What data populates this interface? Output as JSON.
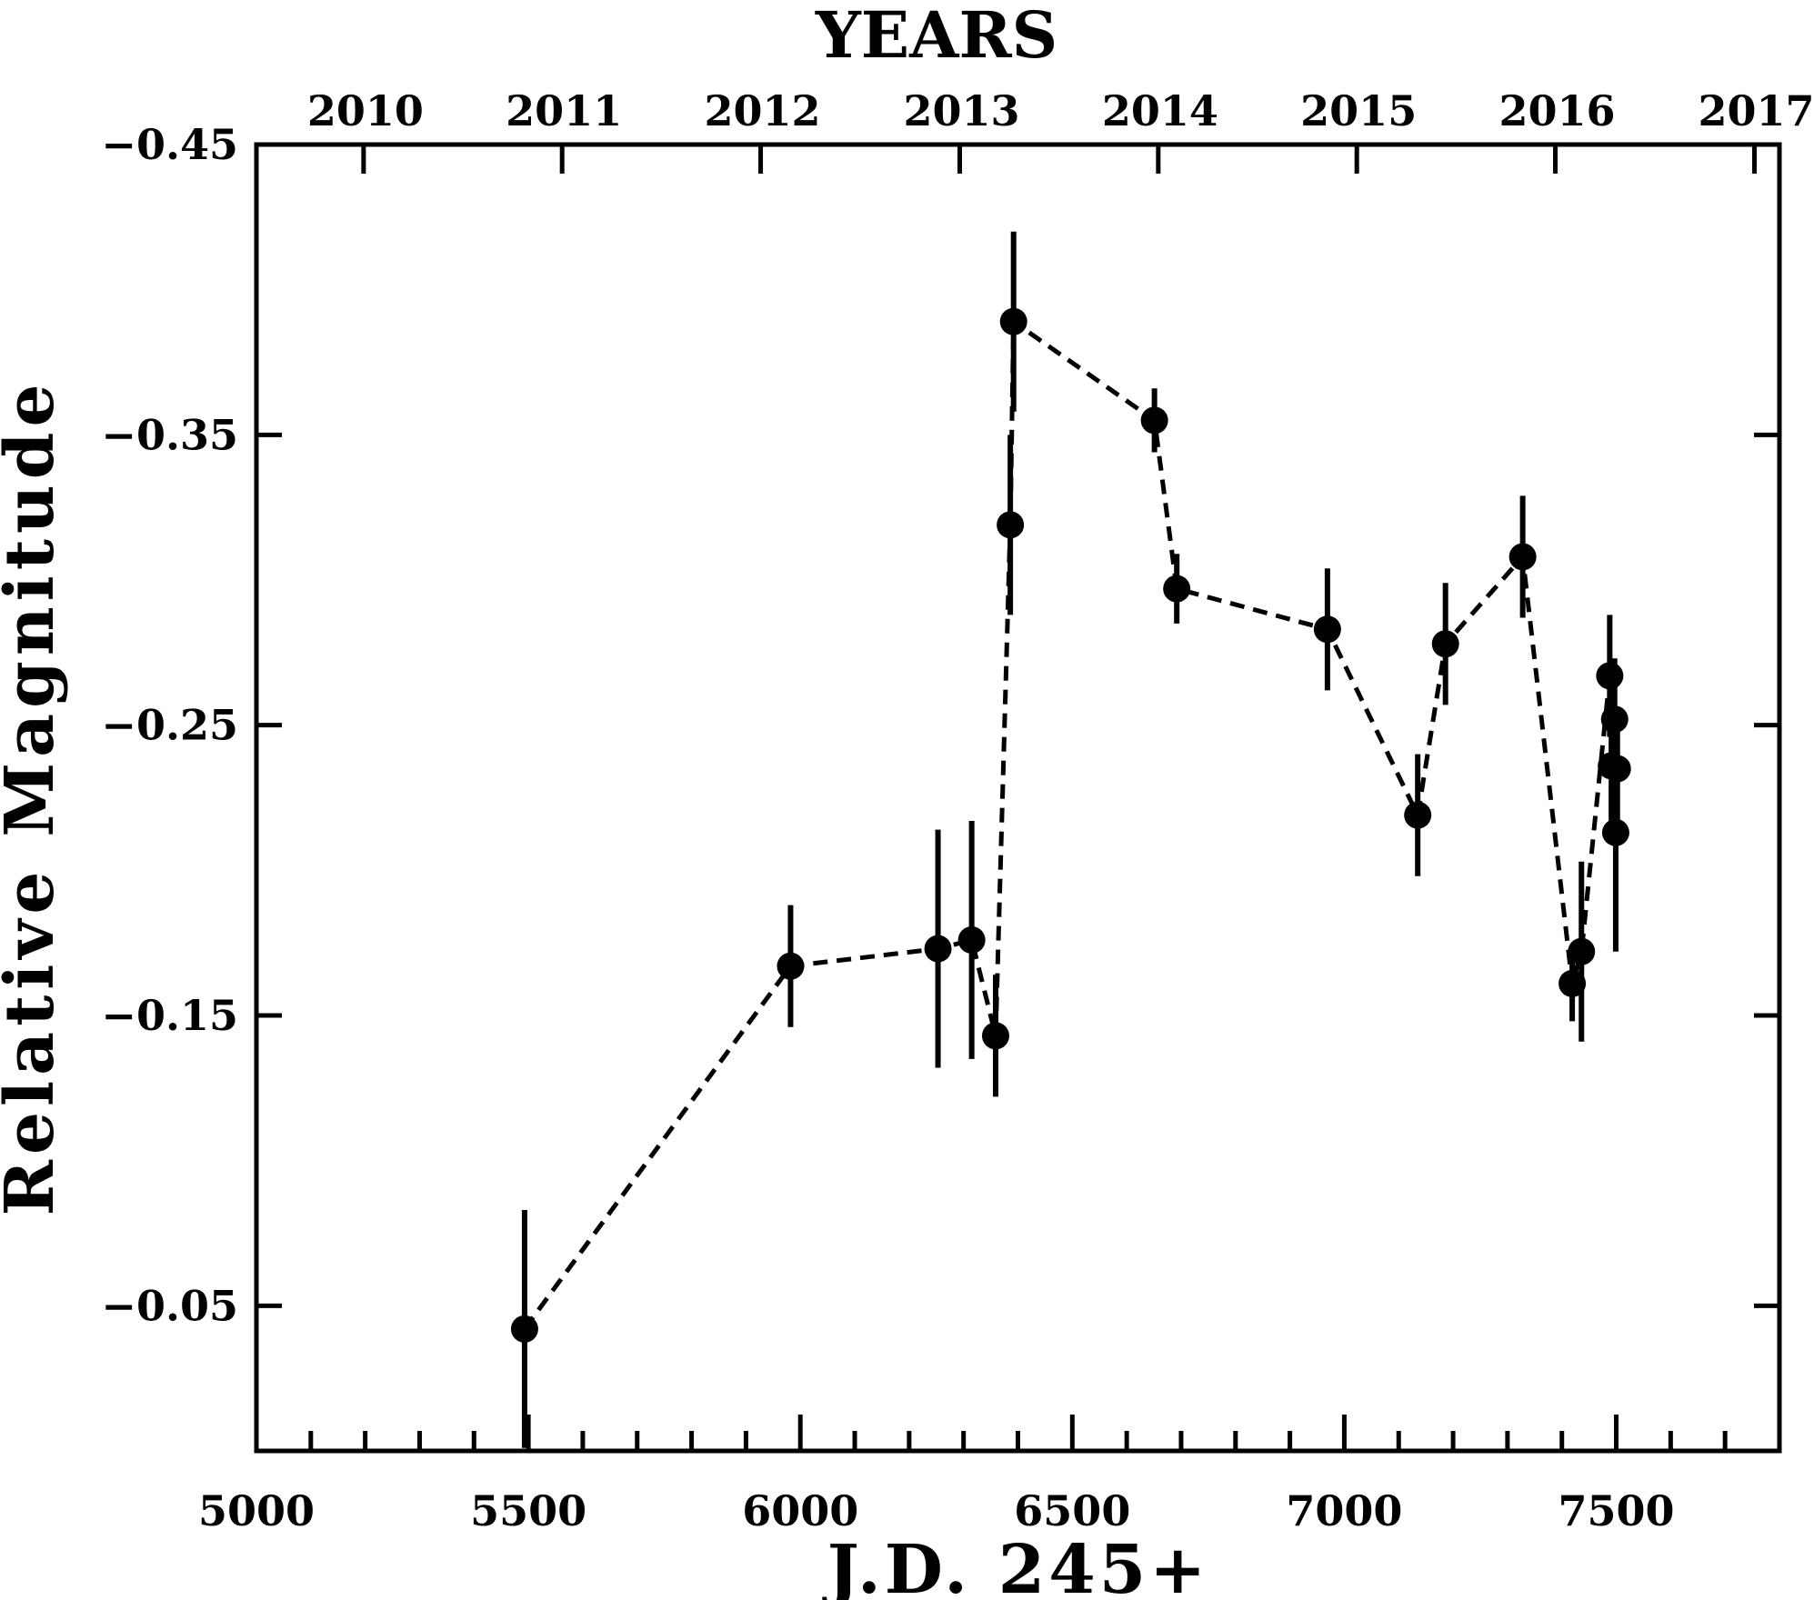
{
  "chart_data": {
    "type": "scatter",
    "title": "",
    "xlabel": "J.D. 245+",
    "ylabel": "Relative Magnitude",
    "top_axis_label": "YEARS",
    "xlim": [
      5000,
      7800
    ],
    "ylim": [
      0.0,
      -0.45
    ],
    "y_axis_inverted": true,
    "x_ticks": [
      5000,
      5500,
      6000,
      6500,
      7000,
      7500
    ],
    "x_tick_labels": [
      "5000",
      "5500",
      "6000",
      "6500",
      "7000",
      "7500"
    ],
    "x_minor_step": 100,
    "y_ticks": [
      -0.45,
      -0.35,
      -0.25,
      -0.15,
      -0.05
    ],
    "y_tick_labels": [
      "−0.45",
      "−0.35",
      "−0.25",
      "−0.15",
      "−0.05"
    ],
    "top_ticks_jd": [
      5197,
      5562,
      5927,
      6293,
      6658,
      7023,
      7388,
      7754
    ],
    "top_tick_labels": [
      "2010",
      "2011",
      "2012",
      "2013",
      "2014",
      "2015",
      "2016",
      "2017"
    ],
    "grid": false,
    "line_style": "dashed",
    "marker": "filled-circle",
    "color": "#000000",
    "series": [
      {
        "x": [
          5493,
          5982,
          6253,
          6315,
          6359,
          6386,
          6392,
          6651,
          6692,
          6969,
          7135,
          7186,
          7328,
          7419,
          7436,
          7488,
          7497,
          7491,
          7502,
          7499
        ],
        "y": [
          -0.042,
          -0.167,
          -0.173,
          -0.176,
          -0.143,
          -0.319,
          -0.389,
          -0.355,
          -0.297,
          -0.283,
          -0.219,
          -0.278,
          -0.308,
          -0.161,
          -0.172,
          -0.267,
          -0.252,
          -0.236,
          -0.235,
          -0.213
        ],
        "yerr": [
          0.041,
          0.021,
          0.041,
          0.041,
          0.021,
          0.031,
          0.031,
          0.011,
          0.012,
          0.021,
          0.021,
          0.021,
          0.021,
          0.013,
          0.031,
          0.021,
          0.021,
          0.021,
          0.021,
          0.041
        ]
      }
    ]
  }
}
